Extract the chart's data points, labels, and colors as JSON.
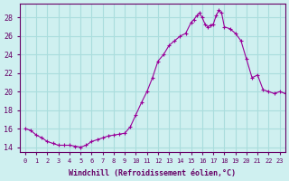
{
  "title": "",
  "xlabel": "Windchill (Refroidissement éolien,°C)",
  "ylabel": "",
  "bg_color": "#cff0f0",
  "line_color": "#990099",
  "marker_color": "#990099",
  "grid_color": "#aadddd",
  "axis_color": "#660066",
  "text_color": "#660066",
  "ylim": [
    13.5,
    29.5
  ],
  "yticks": [
    14,
    16,
    18,
    20,
    22,
    24,
    26,
    28
  ],
  "xlim": [
    -0.5,
    23.5
  ],
  "xticks": [
    0,
    1,
    2,
    3,
    4,
    5,
    6,
    7,
    8,
    9,
    10,
    11,
    12,
    13,
    14,
    15,
    16,
    17,
    18,
    19,
    20,
    21,
    22,
    23
  ],
  "x": [
    0,
    0.5,
    1,
    1.5,
    2,
    2.5,
    3,
    3.5,
    4,
    4.5,
    5,
    5.5,
    6,
    6.5,
    7,
    7.5,
    8,
    8.5,
    9,
    9.5,
    10,
    10.5,
    11,
    11.5,
    12,
    12.5,
    13,
    13.5,
    14,
    14.5,
    15,
    15.25,
    15.5,
    15.75,
    16,
    16.25,
    16.5,
    16.75,
    17,
    17.25,
    17.5,
    17.75,
    18,
    18.5,
    19,
    19.5,
    20,
    20.5,
    21,
    21.5,
    22,
    22.5,
    23,
    23.5
  ],
  "y": [
    16.0,
    15.8,
    15.3,
    15.0,
    14.6,
    14.4,
    14.2,
    14.2,
    14.2,
    14.1,
    14.0,
    14.2,
    14.6,
    14.8,
    15.0,
    15.2,
    15.3,
    15.4,
    15.5,
    16.2,
    17.5,
    18.8,
    20.0,
    21.5,
    23.3,
    24.0,
    25.0,
    25.5,
    26.0,
    26.3,
    27.5,
    27.8,
    28.2,
    28.5,
    28.0,
    27.3,
    27.0,
    27.2,
    27.3,
    28.2,
    28.8,
    28.5,
    27.0,
    26.8,
    26.3,
    25.5,
    23.5,
    21.5,
    21.8,
    20.2,
    20.0,
    19.8,
    20.0,
    19.8
  ]
}
